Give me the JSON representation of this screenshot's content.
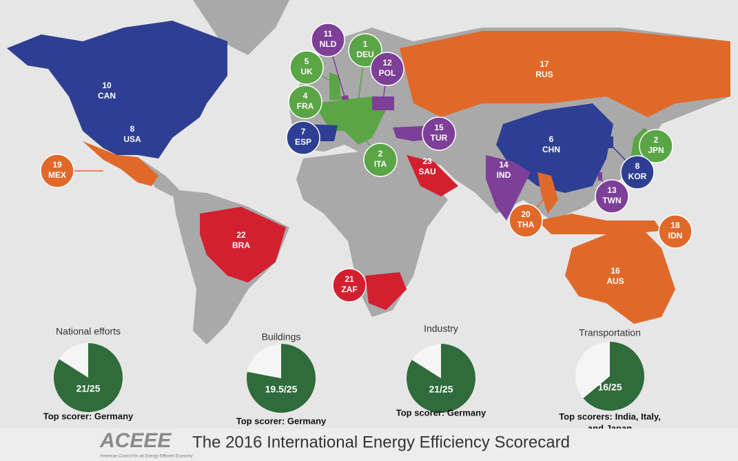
{
  "countries": [
    {
      "rank": 10,
      "code": "CAN",
      "color": "#2e3f93"
    },
    {
      "rank": 8,
      "code": "USA",
      "color": "#2e3f93"
    },
    {
      "rank": 19,
      "code": "MEX",
      "color": "#e0692a"
    },
    {
      "rank": 11,
      "code": "NLD",
      "color": "#7d3f98"
    },
    {
      "rank": 1,
      "code": "DEU",
      "color": "#5aa545"
    },
    {
      "rank": 5,
      "code": "UK",
      "color": "#5aa545"
    },
    {
      "rank": 12,
      "code": "POL",
      "color": "#7d3f98"
    },
    {
      "rank": 4,
      "code": "FRA",
      "color": "#5aa545"
    },
    {
      "rank": 7,
      "code": "ESP",
      "color": "#2e3f93"
    },
    {
      "rank": 15,
      "code": "TUR",
      "color": "#7d3f98"
    },
    {
      "rank": 2,
      "code": "ITA",
      "color": "#5aa545"
    },
    {
      "rank": 23,
      "code": "SAU",
      "color": "#d32030"
    },
    {
      "rank": 17,
      "code": "RUS",
      "color": "#e0692a"
    },
    {
      "rank": 6,
      "code": "CHN",
      "color": "#2e3f93"
    },
    {
      "rank": 14,
      "code": "IND",
      "color": "#7d3f98"
    },
    {
      "rank": 2,
      "code": "JPN",
      "color": "#5aa545"
    },
    {
      "rank": 8,
      "code": "KOR",
      "color": "#2e3f93"
    },
    {
      "rank": 13,
      "code": "TWN",
      "color": "#7d3f98"
    },
    {
      "rank": 20,
      "code": "THA",
      "color": "#e0692a"
    },
    {
      "rank": 18,
      "code": "IDN",
      "color": "#e0692a"
    },
    {
      "rank": 22,
      "code": "BRA",
      "color": "#d32030"
    },
    {
      "rank": 21,
      "code": "ZAF",
      "color": "#d32030"
    },
    {
      "rank": 16,
      "code": "AUS",
      "color": "#e0692a"
    }
  ],
  "panels": [
    {
      "title": "National efforts",
      "score": 21,
      "max": 25,
      "score_label": "21/25",
      "top_scorer": "Top scorer: Germany",
      "color": "#2f6b3b"
    },
    {
      "title": "Buildings",
      "score": 19.5,
      "max": 25,
      "score_label": "19.5/25",
      "top_scorer": "Top scorer: Germany",
      "color": "#2f6b3b"
    },
    {
      "title": "Industry",
      "score": 21,
      "max": 25,
      "score_label": "21/25",
      "top_scorer": "Top scorer: Germany",
      "color": "#2f6b3b"
    },
    {
      "title": "Transportation",
      "score": 16,
      "max": 25,
      "score_label": "16/25",
      "top_scorer": "Top scorers: India, Italy, and Japan",
      "color": "#2f6b3b"
    }
  ],
  "footer": {
    "logo": "ACEEE",
    "logo_subtitle": "American Council for an Energy-Efficient Economy",
    "title": "The 2016 International Energy Efficiency Scorecard"
  }
}
